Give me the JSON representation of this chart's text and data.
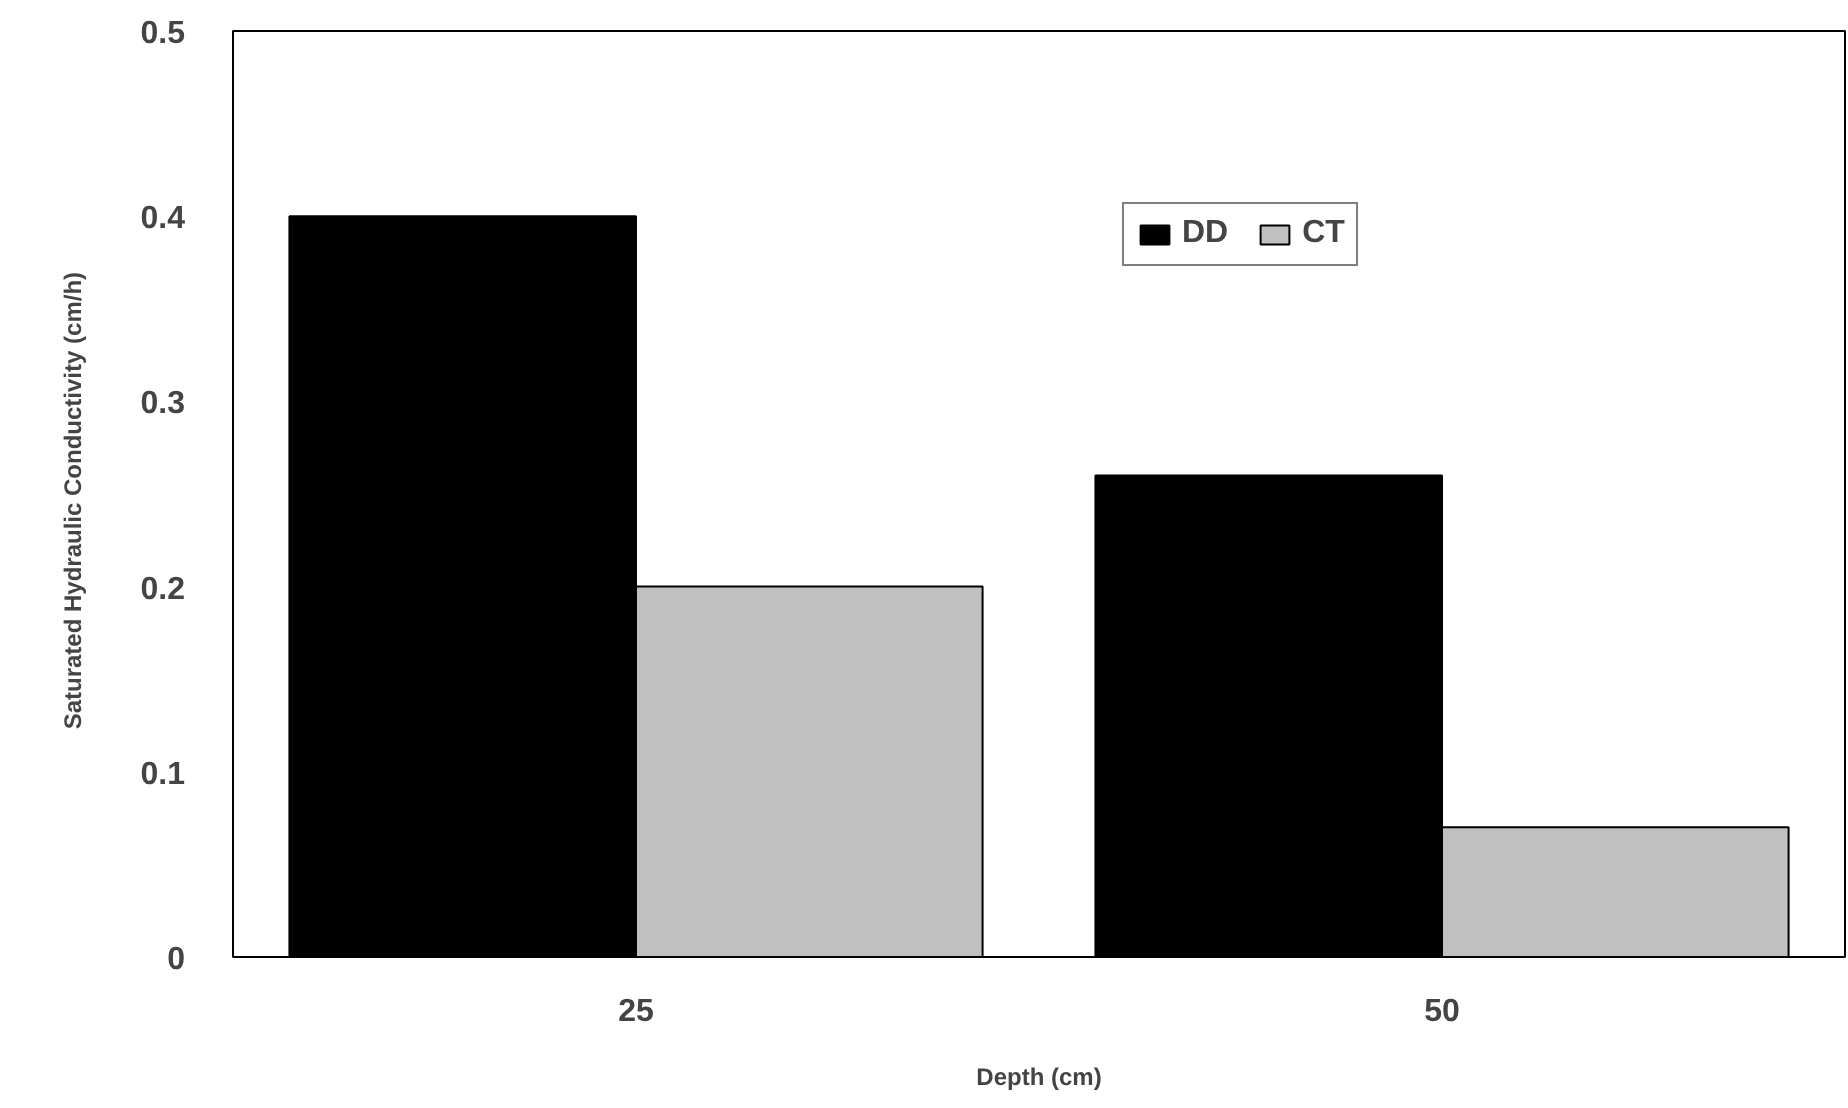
{
  "chart_data": {
    "type": "bar",
    "xlabel": "Depth (cm)",
    "ylabel": "Saturated Hydraulic Conductivity   (cm/h)",
    "categories": [
      "25",
      "50"
    ],
    "series": [
      {
        "name": "DD",
        "color": "#000000",
        "values": [
          0.4,
          0.26
        ]
      },
      {
        "name": "CT",
        "color": "#c0c0c0",
        "values": [
          0.2,
          0.07
        ]
      }
    ],
    "ylim": [
      0,
      0.5
    ],
    "yticks": [
      0,
      0.1,
      0.2,
      0.3,
      0.4,
      0.5
    ],
    "grid": false,
    "legend": "top right"
  }
}
